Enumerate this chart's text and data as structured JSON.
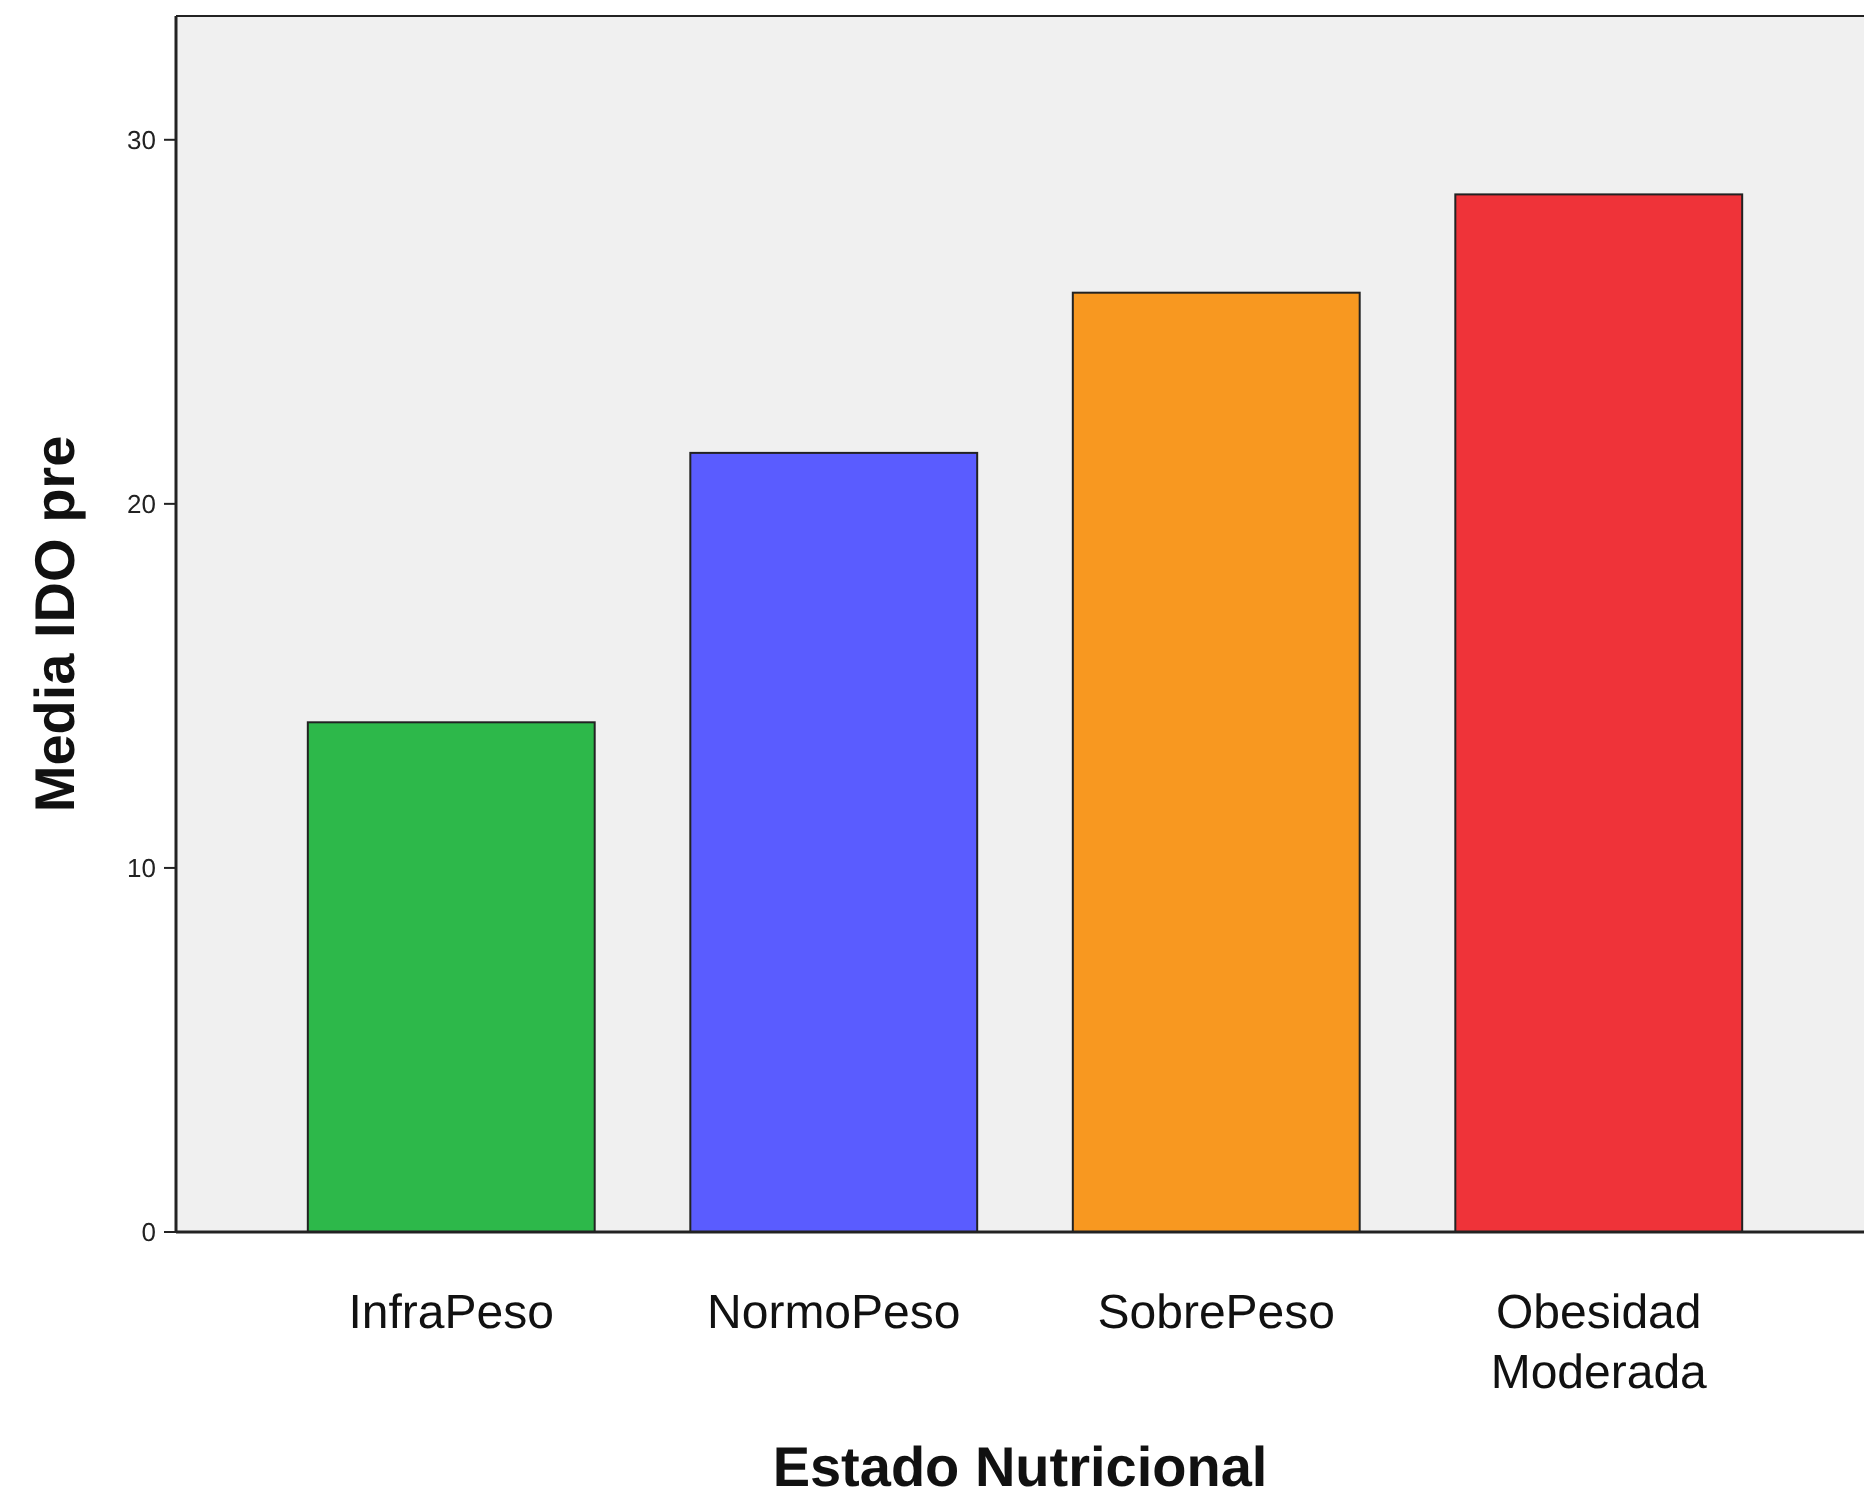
{
  "chart_data": {
    "type": "bar",
    "xlabel": "Estado Nutricional",
    "ylabel": "Media IDO pre",
    "categories": [
      "InfraPeso",
      "NormoPeso",
      "SobrePeso",
      "Obesidad Moderada"
    ],
    "values": [
      14.0,
      21.4,
      25.8,
      28.5
    ],
    "colors": [
      "#2db84a",
      "#5a5cff",
      "#f89820",
      "#ef3339"
    ],
    "ylim": [
      0,
      33.4
    ],
    "yticks": [
      0,
      10,
      20,
      30
    ]
  }
}
